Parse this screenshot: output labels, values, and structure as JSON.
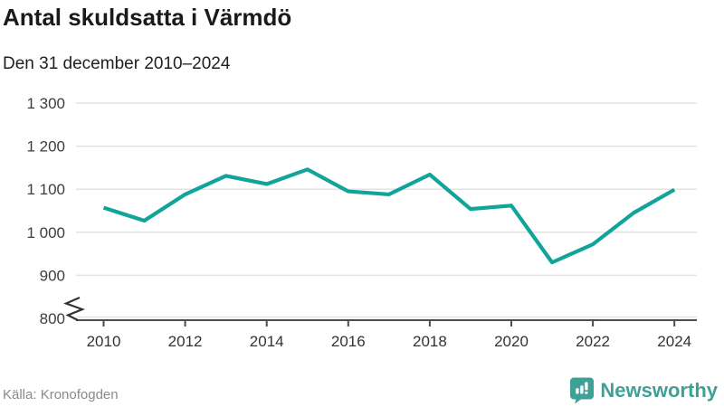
{
  "header": {
    "title": "Antal skuldsatta i Värmdö",
    "subtitle": "Den 31 december 2010–2024"
  },
  "footer": {
    "source": "Källa: Kronofogden",
    "brand": {
      "name": "Newsworthy",
      "icon": "newsworthy-bubble-bar-chart-icon",
      "color": "#3fa096"
    }
  },
  "colors": {
    "line": "#10a49a",
    "grid": "#e3e3e3",
    "axis": "#4d4d4d",
    "tick_label": "#3d3d3d",
    "title": "#1a1a1a",
    "source": "#8a8a8a"
  },
  "chart_data": {
    "type": "line",
    "title": "Antal skuldsatta i Värmdö",
    "subtitle": "Den 31 december 2010–2024",
    "x": [
      2010,
      2011,
      2012,
      2013,
      2014,
      2015,
      2016,
      2017,
      2018,
      2019,
      2020,
      2021,
      2022,
      2023,
      2024
    ],
    "series": [
      {
        "name": "Antal skuldsatta",
        "color": "#10a49a",
        "values": [
          1057,
          1027,
          1088,
          1131,
          1112,
          1146,
          1095,
          1088,
          1134,
          1054,
          1062,
          930,
          972,
          1045,
          1099
        ]
      }
    ],
    "ylim": [
      800,
      1300
    ],
    "yticks": [
      800,
      900,
      1000,
      1100,
      1200,
      1300
    ],
    "ytick_labels": [
      "800",
      "900",
      "1 000",
      "1 100",
      "1 200",
      "1 300"
    ],
    "xticks": [
      2010,
      2012,
      2014,
      2016,
      2018,
      2020,
      2022,
      2024
    ],
    "grid": "horizontal",
    "y_axis_break": true,
    "legend": "none",
    "source": "Källa: Kronofogden"
  }
}
